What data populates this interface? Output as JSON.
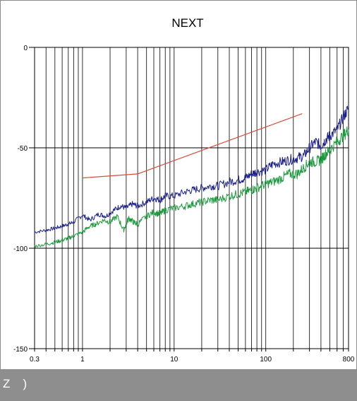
{
  "chart_data": {
    "type": "line",
    "title": "NEXT",
    "xlabel": "",
    "ylabel": "",
    "xscale": "log",
    "xlim": [
      0.3,
      800
    ],
    "ylim": [
      -150,
      0
    ],
    "x_tick_labels": [
      "0.3",
      "1",
      "10",
      "100",
      "800"
    ],
    "x_tick_values": [
      0.3,
      1,
      10,
      100,
      800
    ],
    "y_tick_labels": [
      "0",
      "-50",
      "-100",
      "-150"
    ],
    "y_tick_values": [
      0,
      -50,
      -100,
      -150
    ],
    "grid": true,
    "series": [
      {
        "color": "#1a1f8c",
        "x": [
          0.3,
          0.4,
          0.5,
          0.6,
          0.7,
          0.8,
          1.0,
          1.2,
          1.5,
          1.8,
          2.2,
          2.6,
          3.0,
          3.5,
          4.0,
          5.0,
          6.0,
          7.0,
          8.0,
          10,
          13,
          16,
          20,
          25,
          30,
          40,
          50,
          60,
          70,
          80,
          100,
          120,
          150,
          180,
          220,
          260,
          300,
          350,
          400,
          450,
          500,
          600,
          700,
          800
        ],
        "y": [
          -92,
          -91,
          -90,
          -89,
          -88,
          -87,
          -83.5,
          -86,
          -83,
          -84,
          -81,
          -79,
          -80,
          -78,
          -79,
          -77,
          -75,
          -76,
          -74,
          -74,
          -72,
          -71,
          -70,
          -69,
          -69,
          -67,
          -66,
          -65,
          -63,
          -62,
          -61,
          -58,
          -57,
          -56,
          -55,
          -54,
          -50,
          -47,
          -49,
          -46,
          -44,
          -41,
          -35,
          -30
        ]
      },
      {
        "color": "#1a9a3c",
        "x": [
          0.3,
          0.4,
          0.5,
          0.6,
          0.7,
          0.8,
          1.0,
          1.2,
          1.4,
          1.7,
          2.0,
          2.4,
          2.8,
          3.2,
          3.6,
          4.0,
          5.0,
          6.0,
          7.0,
          8.0,
          10,
          13,
          16,
          20,
          25,
          30,
          40,
          50,
          60,
          70,
          80,
          100,
          120,
          150,
          180,
          220,
          260,
          300,
          350,
          400,
          450,
          500,
          600,
          700,
          800
        ],
        "y": [
          -99,
          -98,
          -97,
          -96,
          -95,
          -94,
          -92,
          -89,
          -88,
          -86,
          -87,
          -84,
          -91,
          -85,
          -87,
          -88,
          -84,
          -82,
          -83,
          -81,
          -80,
          -79,
          -78,
          -77,
          -76,
          -76,
          -74,
          -73,
          -72,
          -71,
          -70,
          -68,
          -67,
          -65,
          -63,
          -63,
          -60,
          -57,
          -57,
          -56,
          -53,
          -51,
          -47,
          -44,
          -41
        ]
      },
      {
        "color": "#d94a3a",
        "x": [
          1,
          4,
          250
        ],
        "y": [
          -65,
          -63,
          -33
        ]
      }
    ]
  },
  "footer": {
    "text": "Z   )"
  }
}
